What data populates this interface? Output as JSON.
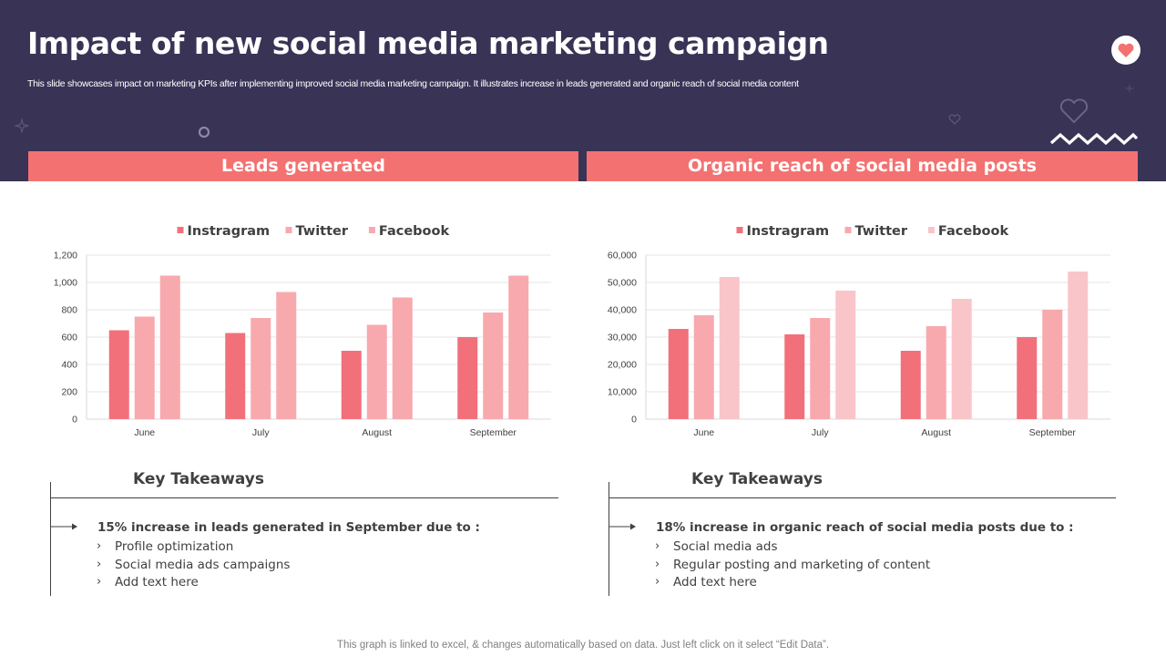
{
  "header": {
    "title": "Impact of new social media marketing campaign",
    "subtitle": "This slide showcases impact on marketing KPIs after implementing improved social media marketing campaign. It illustrates increase in leads generated and organic reach of social media content"
  },
  "icons": {
    "heart_badge": "heart-icon",
    "heart_outline": "heart-outline-icon",
    "zigzag": "zigzag-icon",
    "sparkle": "sparkle-icon",
    "circle": "circle-outline-icon"
  },
  "colors": {
    "header_bg": "#393356",
    "accent": "#f47171",
    "instagram": "#f2707a",
    "twitter": "#f8a9ae",
    "facebook_left": "#f8a9ae",
    "facebook_right": "#fac5c9"
  },
  "sections": {
    "left_title": "Leads generated",
    "right_title": "Organic reach of social media posts"
  },
  "chart_data": [
    {
      "type": "bar",
      "categories": [
        "June",
        "July",
        "August",
        "September"
      ],
      "series": [
        {
          "name": "Instragram",
          "values": [
            650,
            630,
            500,
            600
          ]
        },
        {
          "name": "Twitter",
          "values": [
            750,
            740,
            690,
            780
          ]
        },
        {
          "name": "Facebook",
          "values": [
            1050,
            930,
            890,
            1050
          ]
        }
      ],
      "yticks": [
        "0",
        "200",
        "400",
        "600",
        "800",
        "1,000",
        "1,200"
      ],
      "ylim": [
        0,
        1200
      ],
      "grid": true,
      "legend": "top-center"
    },
    {
      "type": "bar",
      "categories": [
        "June",
        "July",
        "August",
        "September"
      ],
      "series": [
        {
          "name": "Instragram",
          "values": [
            33000,
            31000,
            25000,
            30000
          ]
        },
        {
          "name": "Twitter",
          "values": [
            38000,
            37000,
            34000,
            40000
          ]
        },
        {
          "name": "Facebook",
          "values": [
            52000,
            47000,
            44000,
            54000
          ]
        }
      ],
      "yticks": [
        "0",
        "10,000",
        "20,000",
        "30,000",
        "40,000",
        "50,000",
        "60,000"
      ],
      "ylim": [
        0,
        60000
      ],
      "grid": true,
      "legend": "top-center"
    }
  ],
  "takeaways": {
    "left": {
      "title": "Key Takeaways",
      "heading": "15% increase in leads generated in September due to :",
      "items": [
        "Profile optimization",
        "Social media ads campaigns",
        "Add text here"
      ]
    },
    "right": {
      "title": "Key Takeaways",
      "heading": "18% increase in organic reach of social media posts due to :",
      "items": [
        "Social media ads",
        "Regular posting and marketing of content",
        "Add text here"
      ]
    },
    "bullet_glyph": "›"
  },
  "footer": {
    "note": "This graph is linked to excel, & changes automatically based on data. Just left click on it select “Edit Data”."
  }
}
